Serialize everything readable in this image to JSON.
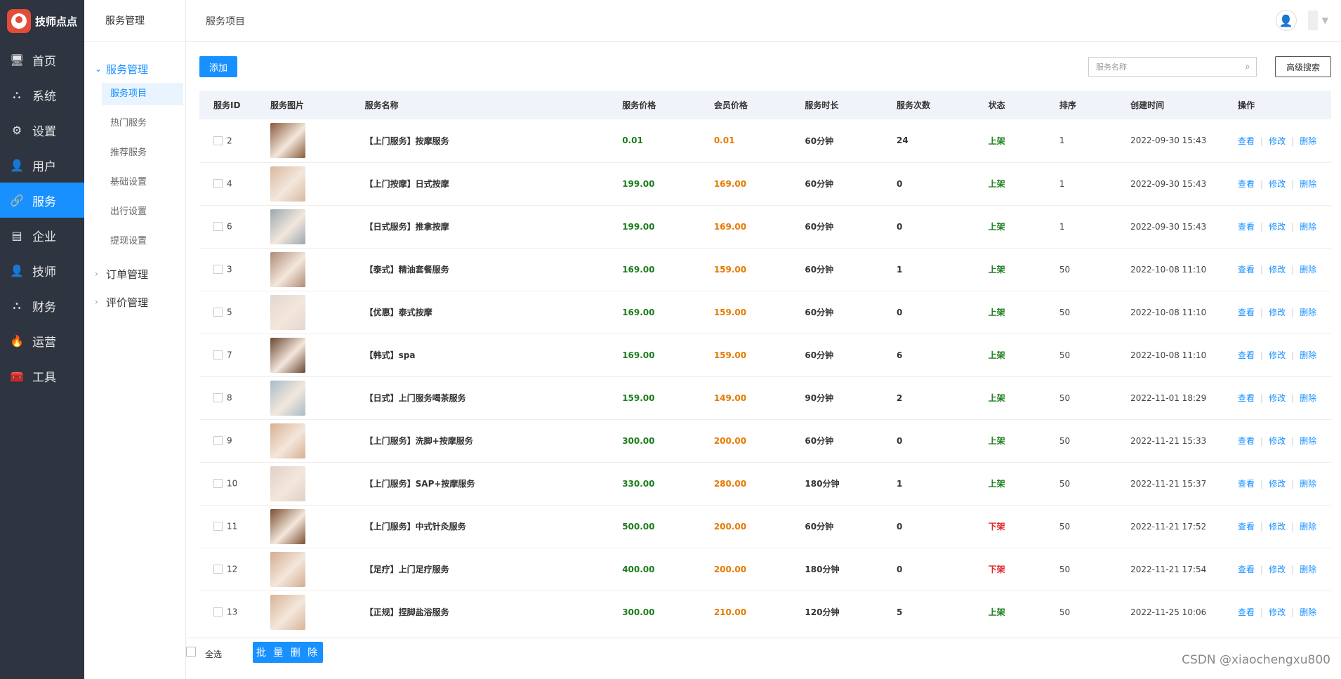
{
  "brand": {
    "title": "技师点点"
  },
  "sidebar": {
    "items": [
      {
        "label": "首页",
        "icon": "🖥",
        "name": "monitor-icon"
      },
      {
        "label": "系统",
        "icon": "⛬",
        "name": "sitemap-icon"
      },
      {
        "label": "设置",
        "icon": "⚙",
        "name": "gear-icon"
      },
      {
        "label": "用户",
        "icon": "👤",
        "name": "user-icon"
      },
      {
        "label": "服务",
        "icon": "🔗",
        "name": "link-icon",
        "active": true
      },
      {
        "label": "企业",
        "icon": "▤",
        "name": "store-icon"
      },
      {
        "label": "技师",
        "icon": "👤",
        "name": "user-icon"
      },
      {
        "label": "财务",
        "icon": "⛬",
        "name": "sitemap-icon"
      },
      {
        "label": "运营",
        "icon": "🔥",
        "name": "fire-icon"
      },
      {
        "label": "工具",
        "icon": "🧰",
        "name": "toolbox-icon"
      }
    ]
  },
  "submenu": {
    "header": "服务管理",
    "group_open": "服务管理",
    "items": [
      "服务项目",
      "热门服务",
      "推荐服务",
      "基础设置",
      "出行设置",
      "提现设置"
    ],
    "group_order": "订单管理",
    "group_review": "评价管理"
  },
  "topbar": {
    "title": "服务项目"
  },
  "toolbar": {
    "add_label": "添加",
    "search_placeholder": "服务名称",
    "advanced_label": "高级搜索"
  },
  "table": {
    "headers": [
      "服务ID",
      "服务图片",
      "服务名称",
      "服务价格",
      "会员价格",
      "服务时长",
      "服务次数",
      "状态",
      "排序",
      "创建时间",
      "操作"
    ],
    "actions": [
      "查看",
      "修改",
      "删除"
    ],
    "rows": [
      {
        "id": "2",
        "name": "【上门服务】按摩服务",
        "price": "0.01",
        "member": "0.01",
        "duration": "60分钟",
        "count": "24",
        "status": "上架",
        "sort": "1",
        "created": "2022-09-30 15:43",
        "img_color": "#8a5a3c"
      },
      {
        "id": "4",
        "name": "【上门按摩】日式按摩",
        "price": "199.00",
        "member": "169.00",
        "duration": "60分钟",
        "count": "0",
        "status": "上架",
        "sort": "1",
        "created": "2022-09-30 15:43",
        "img_color": "#d9b8a0"
      },
      {
        "id": "6",
        "name": "【日式服务】推拿按摩",
        "price": "199.00",
        "member": "169.00",
        "duration": "60分钟",
        "count": "0",
        "status": "上架",
        "sort": "1",
        "created": "2022-09-30 15:43",
        "img_color": "#9aa8b0"
      },
      {
        "id": "3",
        "name": "【泰式】精油套餐服务",
        "price": "169.00",
        "member": "159.00",
        "duration": "60分钟",
        "count": "1",
        "status": "上架",
        "sort": "50",
        "created": "2022-10-08 11:10",
        "img_color": "#b08a78"
      },
      {
        "id": "5",
        "name": "【优惠】泰式按摩",
        "price": "169.00",
        "member": "159.00",
        "duration": "60分钟",
        "count": "0",
        "status": "上架",
        "sort": "50",
        "created": "2022-10-08 11:10",
        "img_color": "#e2d6d0"
      },
      {
        "id": "7",
        "name": "【韩式】spa",
        "price": "169.00",
        "member": "159.00",
        "duration": "60分钟",
        "count": "6",
        "status": "上架",
        "sort": "50",
        "created": "2022-10-08 11:10",
        "img_color": "#6a4530"
      },
      {
        "id": "8",
        "name": "【日式】上门服务喝茶服务",
        "price": "159.00",
        "member": "149.00",
        "duration": "90分钟",
        "count": "2",
        "status": "上架",
        "sort": "50",
        "created": "2022-11-01 18:29",
        "img_color": "#a8bcc8"
      },
      {
        "id": "9",
        "name": "【上门服务】洗脚+按摩服务",
        "price": "300.00",
        "member": "200.00",
        "duration": "60分钟",
        "count": "0",
        "status": "上架",
        "sort": "50",
        "created": "2022-11-21 15:33",
        "img_color": "#d8b090"
      },
      {
        "id": "10",
        "name": "【上门服务】SAP+按摩服务",
        "price": "330.00",
        "member": "280.00",
        "duration": "180分钟",
        "count": "1",
        "status": "上架",
        "sort": "50",
        "created": "2022-11-21 15:37",
        "img_color": "#e0d0c8"
      },
      {
        "id": "11",
        "name": "【上门服务】中式针灸服务",
        "price": "500.00",
        "member": "200.00",
        "duration": "60分钟",
        "count": "0",
        "status": "下架",
        "sort": "50",
        "created": "2022-11-21 17:52",
        "img_color": "#7a4e30"
      },
      {
        "id": "12",
        "name": "【足疗】上门足疗服务",
        "price": "400.00",
        "member": "200.00",
        "duration": "180分钟",
        "count": "0",
        "status": "下架",
        "sort": "50",
        "created": "2022-11-21 17:54",
        "img_color": "#d4ac90"
      },
      {
        "id": "13",
        "name": "【正规】捏脚盐浴服务",
        "price": "300.00",
        "member": "210.00",
        "duration": "120分钟",
        "count": "5",
        "status": "上架",
        "sort": "50",
        "created": "2022-11-25 10:06",
        "img_color": "#d8b494"
      }
    ]
  },
  "footer": {
    "select_all": "全选",
    "batch_delete": "批 量 删 除"
  },
  "watermark": "CSDN @xiaochengxu800"
}
